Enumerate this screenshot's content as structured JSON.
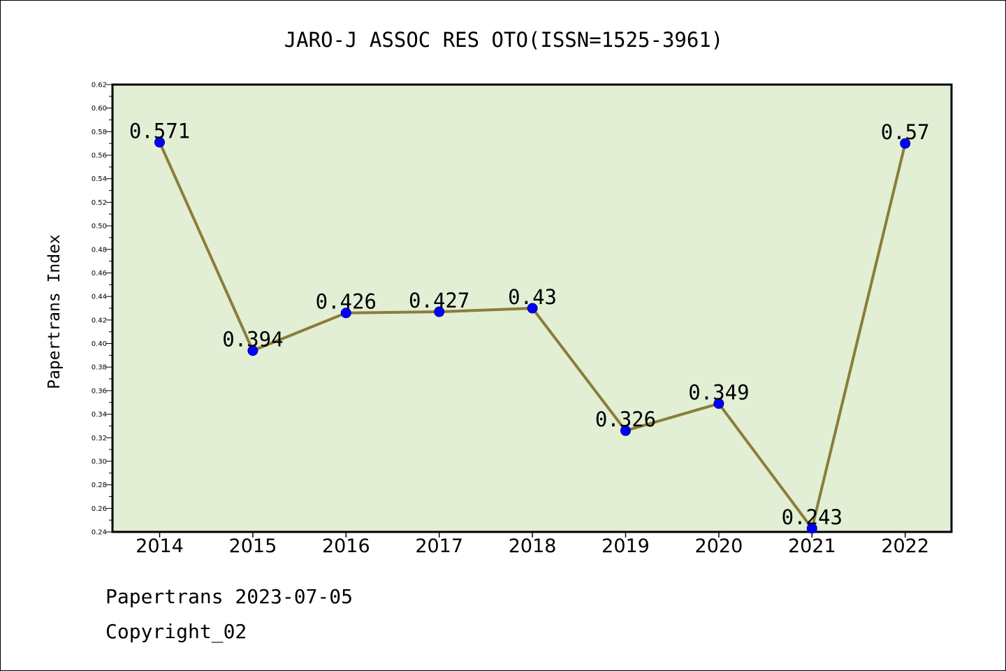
{
  "chart_data": {
    "type": "line",
    "title": "JARO-J ASSOC RES OTO(ISSN=1525-3961)",
    "xlabel": "",
    "ylabel": "Papertrans Index",
    "categories": [
      "2014",
      "2015",
      "2016",
      "2017",
      "2018",
      "2019",
      "2020",
      "2021",
      "2022"
    ],
    "values": [
      0.571,
      0.394,
      0.426,
      0.427,
      0.43,
      0.326,
      0.349,
      0.243,
      0.57
    ],
    "data_labels": [
      "0.571",
      "0.394",
      "0.426",
      "0.427",
      "0.43",
      "0.326",
      "0.349",
      "0.243",
      "0.57"
    ],
    "ylim": [
      0.24,
      0.62
    ],
    "yticks": [
      "0.24",
      "0.26",
      "0.28",
      "0.30",
      "0.32",
      "0.34",
      "0.36",
      "0.38",
      "0.40",
      "0.42",
      "0.44",
      "0.46",
      "0.48",
      "0.50",
      "0.52",
      "0.54",
      "0.56",
      "0.58",
      "0.60",
      "0.62"
    ],
    "grid": false,
    "legend": "none",
    "colors": {
      "plot_background": "#e2efd5",
      "line": "#8b7d3a",
      "marker": "#0000ff"
    }
  },
  "footer": {
    "line1": "Papertrans 2023-07-05",
    "line2": "Copyright_02"
  }
}
